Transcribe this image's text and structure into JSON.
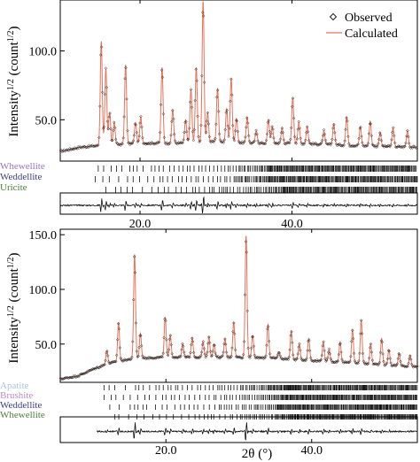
{
  "chart_data": [
    {
      "type": "line",
      "panel": "top",
      "ylabel": "Intensity",
      "ylabel_sup": "1/2",
      "ylabel_unit_open": " (count",
      "ylabel_unit_sup": "1/2",
      "ylabel_unit_close": ")",
      "xlabel": "",
      "xlim": [
        9.5,
        56.5
      ],
      "ylim": [
        20,
        137
      ],
      "xticks": [
        20,
        40
      ],
      "xtick_labels": [
        "20.0",
        "40.0"
      ],
      "yticks": [
        50,
        100
      ],
      "ytick_labels": [
        "50.0",
        "100.0"
      ],
      "legend": {
        "position": "top-right",
        "observed": "Observed",
        "calculated": "Calculated"
      },
      "background": [
        [
          9.5,
          27
        ],
        [
          12,
          30
        ],
        [
          14,
          31
        ],
        [
          17,
          32
        ],
        [
          20,
          33
        ],
        [
          25,
          33
        ],
        [
          30,
          34
        ],
        [
          35,
          33
        ],
        [
          40,
          33
        ],
        [
          45,
          32
        ],
        [
          50,
          31
        ],
        [
          56.5,
          30
        ]
      ],
      "peaks": [
        {
          "x": 14.9,
          "y": 107
        },
        {
          "x": 15.5,
          "y": 87
        },
        {
          "x": 16.0,
          "y": 55
        },
        {
          "x": 16.6,
          "y": 48
        },
        {
          "x": 18.1,
          "y": 90
        },
        {
          "x": 19.4,
          "y": 48
        },
        {
          "x": 20.1,
          "y": 52
        },
        {
          "x": 22.9,
          "y": 88
        },
        {
          "x": 24.3,
          "y": 57
        },
        {
          "x": 26.0,
          "y": 50
        },
        {
          "x": 26.7,
          "y": 72
        },
        {
          "x": 27.4,
          "y": 88
        },
        {
          "x": 28.3,
          "y": 136
        },
        {
          "x": 28.9,
          "y": 55
        },
        {
          "x": 30.2,
          "y": 73
        },
        {
          "x": 31.4,
          "y": 58
        },
        {
          "x": 32.0,
          "y": 80
        },
        {
          "x": 32.7,
          "y": 51
        },
        {
          "x": 34.1,
          "y": 52
        },
        {
          "x": 35.3,
          "y": 42
        },
        {
          "x": 36.9,
          "y": 50
        },
        {
          "x": 37.4,
          "y": 45
        },
        {
          "x": 38.7,
          "y": 44
        },
        {
          "x": 40.1,
          "y": 66
        },
        {
          "x": 40.9,
          "y": 48
        },
        {
          "x": 42.0,
          "y": 45
        },
        {
          "x": 44.2,
          "y": 42
        },
        {
          "x": 45.5,
          "y": 47
        },
        {
          "x": 47.2,
          "y": 52
        },
        {
          "x": 49.0,
          "y": 45
        },
        {
          "x": 50.3,
          "y": 49
        },
        {
          "x": 51.6,
          "y": 41
        },
        {
          "x": 53.3,
          "y": 44
        },
        {
          "x": 55.2,
          "y": 42
        }
      ],
      "phases": [
        {
          "name": "Whewellite",
          "color": "#9b72c9",
          "start": 14.5
        },
        {
          "name": "Weddellite",
          "color": "#3b3b9a",
          "start": 14.1
        },
        {
          "name": "Uricite",
          "color": "#4f7d3c",
          "start": 15.5
        }
      ]
    },
    {
      "type": "line",
      "panel": "bottom",
      "ylabel": "Intensity",
      "ylabel_sup": "1/2",
      "ylabel_unit_open": " (count",
      "ylabel_unit_sup": "1/2",
      "ylabel_unit_close": ")",
      "xlabel": "2θ (°)",
      "xlim": [
        5.5,
        54.5
      ],
      "ylim": [
        15,
        155
      ],
      "xticks": [
        20,
        40
      ],
      "xtick_labels": [
        "20.0",
        "40.0"
      ],
      "yticks": [
        50,
        100,
        150
      ],
      "ytick_labels": [
        "50.0",
        "100.0",
        "150.0"
      ],
      "background": [
        [
          5.5,
          18
        ],
        [
          8,
          21
        ],
        [
          10,
          27
        ],
        [
          12,
          32
        ],
        [
          14,
          35
        ],
        [
          16,
          37
        ],
        [
          20,
          38
        ],
        [
          25,
          38
        ],
        [
          30,
          38
        ],
        [
          35,
          37
        ],
        [
          40,
          35
        ],
        [
          45,
          33
        ],
        [
          50,
          31
        ],
        [
          54.5,
          29
        ]
      ],
      "peaks": [
        {
          "x": 11.9,
          "y": 44
        },
        {
          "x": 13.5,
          "y": 70
        },
        {
          "x": 15.7,
          "y": 132
        },
        {
          "x": 16.5,
          "y": 60
        },
        {
          "x": 19.9,
          "y": 75
        },
        {
          "x": 20.6,
          "y": 58
        },
        {
          "x": 22.3,
          "y": 50
        },
        {
          "x": 23.6,
          "y": 56
        },
        {
          "x": 25.1,
          "y": 52
        },
        {
          "x": 25.9,
          "y": 57
        },
        {
          "x": 26.6,
          "y": 50
        },
        {
          "x": 28.1,
          "y": 55
        },
        {
          "x": 29.3,
          "y": 70
        },
        {
          "x": 31.0,
          "y": 149
        },
        {
          "x": 31.9,
          "y": 58
        },
        {
          "x": 34.0,
          "y": 68
        },
        {
          "x": 35.5,
          "y": 43
        },
        {
          "x": 37.2,
          "y": 62
        },
        {
          "x": 38.3,
          "y": 50
        },
        {
          "x": 39.6,
          "y": 55
        },
        {
          "x": 41.6,
          "y": 52
        },
        {
          "x": 42.4,
          "y": 45
        },
        {
          "x": 43.9,
          "y": 52
        },
        {
          "x": 45.6,
          "y": 63
        },
        {
          "x": 46.8,
          "y": 72
        },
        {
          "x": 48.1,
          "y": 50
        },
        {
          "x": 49.6,
          "y": 55
        },
        {
          "x": 50.6,
          "y": 45
        },
        {
          "x": 52.0,
          "y": 42
        },
        {
          "x": 53.5,
          "y": 40
        }
      ],
      "phases": [
        {
          "name": "Apatite",
          "color": "#a7c4dd",
          "start": 11.5
        },
        {
          "name": "Brushite",
          "color": "#c18ac6",
          "start": 11.5
        },
        {
          "name": "Weddellite",
          "color": "#3b3b9a",
          "start": 12.3
        },
        {
          "name": "Whewellite",
          "color": "#4f7d3c",
          "start": 13.0
        }
      ]
    }
  ],
  "colors": {
    "observed_marker": "#222222",
    "calculated_line": "#e8735a",
    "difference_line": "#111111"
  }
}
